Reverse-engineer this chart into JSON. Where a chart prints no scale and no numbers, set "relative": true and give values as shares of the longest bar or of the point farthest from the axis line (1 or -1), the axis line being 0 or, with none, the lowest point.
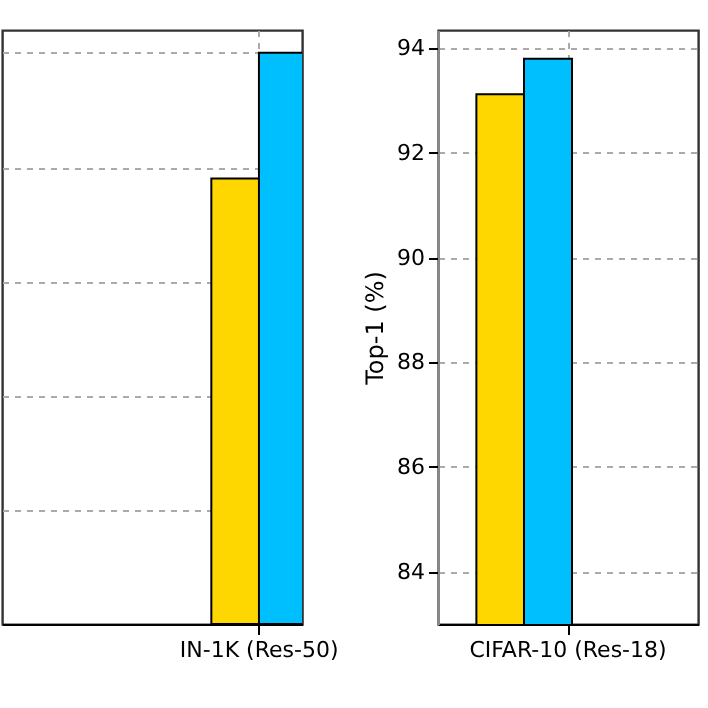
{
  "chart_data": [
    {
      "type": "bar",
      "relative": true,
      "categories": [
        "IN-1K (Res-50)"
      ],
      "grid": true,
      "series": [
        {
          "color": "#ffd700",
          "values": [
            0.78
          ]
        },
        {
          "color": "#00bfff",
          "values": [
            1.0
          ]
        }
      ]
    },
    {
      "type": "bar",
      "ylabel": "Top-1 (%)",
      "categories": [
        "CIFAR-10 (Res-18)"
      ],
      "grid": true,
      "ylim": [
        83,
        94.35
      ],
      "yticks": [
        84,
        86,
        88,
        90,
        92,
        94
      ],
      "series": [
        {
          "color": "#ffd700",
          "values": [
            93.12
          ]
        },
        {
          "color": "#00bfff",
          "values": [
            93.8
          ]
        }
      ]
    }
  ]
}
